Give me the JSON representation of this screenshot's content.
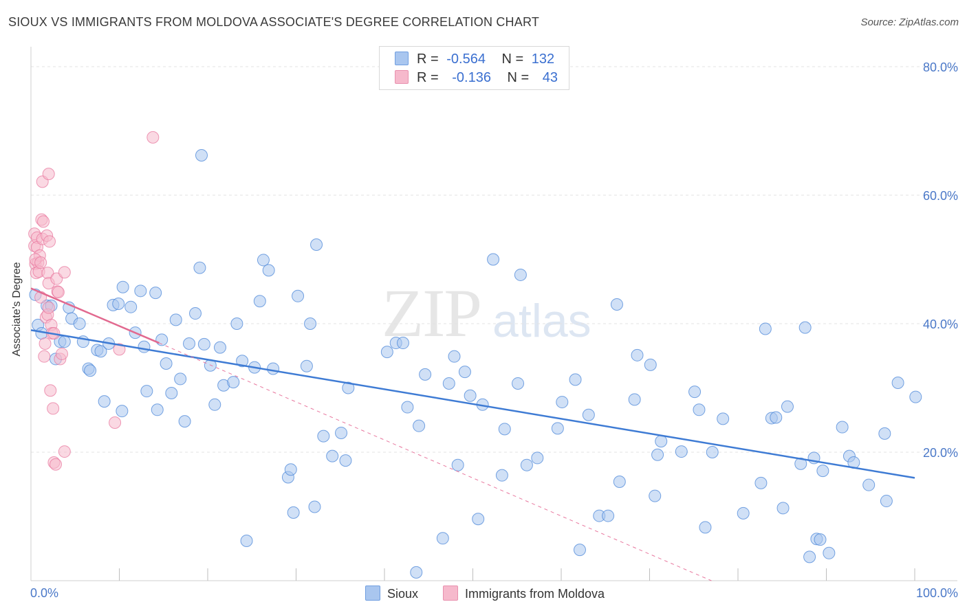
{
  "header": {
    "title": "SIOUX VS IMMIGRANTS FROM MOLDOVA ASSOCIATE'S DEGREE CORRELATION CHART",
    "source": "Source: ZipAtlas.com"
  },
  "watermark": {
    "zip": "ZIP",
    "atlas": "atlas"
  },
  "legend": {
    "rows": [
      {
        "r_label": "R =",
        "r_value": "-0.564",
        "n_label": "N =",
        "n_value": "132",
        "color": "#a9c6ef"
      },
      {
        "r_label": "R =",
        "r_value": "-0.136",
        "n_label": "N =",
        "n_value": "43",
        "color": "#f6b9cc"
      }
    ]
  },
  "bottom_legend": [
    {
      "label": "Sioux",
      "color": "#a9c6ef"
    },
    {
      "label": "Immigrants from Moldova",
      "color": "#f6b9cc"
    }
  ],
  "chart_data": {
    "type": "scatter",
    "title": "SIOUX VS IMMIGRANTS FROM MOLDOVA ASSOCIATE'S DEGREE CORRELATION CHART",
    "xlabel": "",
    "ylabel": "Associate's Degree",
    "xlim": [
      0,
      100
    ],
    "ylim": [
      0,
      80
    ],
    "x_tick_labels": [
      "0.0%",
      "100.0%"
    ],
    "y_ticks": [
      20,
      40,
      60,
      80
    ],
    "y_tick_labels": [
      "20.0%",
      "40.0%",
      "60.0%",
      "80.0%"
    ],
    "grid": true,
    "legend_position": "top-center",
    "series": [
      {
        "name": "Sioux",
        "color": "#4a86d8",
        "fill": "#a9c6ef",
        "trend": {
          "x": [
            0,
            100
          ],
          "y": [
            39.0,
            16.0
          ]
        },
        "points": [
          [
            0.5,
            44.5
          ],
          [
            0.8,
            39.8
          ],
          [
            1.2,
            38.5
          ],
          [
            1.8,
            42.8
          ],
          [
            2.3,
            42.8
          ],
          [
            2.8,
            34.5
          ],
          [
            3.3,
            37.2
          ],
          [
            3.8,
            37.2
          ],
          [
            4.3,
            42.5
          ],
          [
            4.6,
            40.8
          ],
          [
            5.5,
            40.0
          ],
          [
            5.9,
            37.2
          ],
          [
            6.5,
            33.0
          ],
          [
            6.7,
            32.7
          ],
          [
            7.5,
            35.9
          ],
          [
            7.9,
            35.7
          ],
          [
            8.3,
            27.9
          ],
          [
            8.8,
            36.9
          ],
          [
            9.3,
            42.9
          ],
          [
            9.9,
            43.1
          ],
          [
            10.3,
            26.4
          ],
          [
            10.4,
            45.7
          ],
          [
            11.3,
            42.6
          ],
          [
            11.8,
            38.6
          ],
          [
            12.4,
            45.1
          ],
          [
            12.8,
            36.4
          ],
          [
            13.1,
            29.5
          ],
          [
            14.1,
            44.8
          ],
          [
            14.3,
            26.6
          ],
          [
            14.8,
            37.5
          ],
          [
            15.3,
            33.8
          ],
          [
            15.9,
            29.2
          ],
          [
            16.4,
            40.6
          ],
          [
            16.9,
            31.4
          ],
          [
            17.4,
            24.8
          ],
          [
            17.9,
            36.9
          ],
          [
            18.6,
            41.6
          ],
          [
            19.1,
            48.7
          ],
          [
            19.3,
            66.2
          ],
          [
            19.6,
            36.8
          ],
          [
            20.3,
            33.5
          ],
          [
            20.8,
            27.4
          ],
          [
            21.4,
            36.3
          ],
          [
            21.8,
            30.4
          ],
          [
            22.9,
            30.9
          ],
          [
            23.3,
            40.0
          ],
          [
            23.9,
            34.2
          ],
          [
            24.4,
            6.2
          ],
          [
            25.3,
            33.2
          ],
          [
            25.9,
            43.5
          ],
          [
            26.3,
            49.9
          ],
          [
            26.9,
            48.3
          ],
          [
            27.4,
            33.0
          ],
          [
            29.1,
            16.1
          ],
          [
            29.4,
            17.3
          ],
          [
            29.7,
            10.6
          ],
          [
            30.2,
            44.3
          ],
          [
            31.2,
            33.4
          ],
          [
            31.6,
            40.0
          ],
          [
            32.1,
            11.5
          ],
          [
            32.3,
            52.3
          ],
          [
            33.1,
            22.5
          ],
          [
            34.1,
            19.4
          ],
          [
            35.1,
            23.0
          ],
          [
            35.6,
            18.7
          ],
          [
            35.9,
            30.0
          ],
          [
            40.3,
            35.6
          ],
          [
            41.3,
            37.0
          ],
          [
            42.1,
            37.0
          ],
          [
            42.6,
            27.0
          ],
          [
            43.6,
            1.3
          ],
          [
            43.9,
            24.1
          ],
          [
            44.6,
            32.1
          ],
          [
            46.6,
            6.6
          ],
          [
            47.3,
            30.7
          ],
          [
            47.9,
            34.9
          ],
          [
            48.3,
            18.0
          ],
          [
            49.1,
            32.5
          ],
          [
            49.7,
            28.8
          ],
          [
            50.6,
            9.6
          ],
          [
            51.1,
            27.4
          ],
          [
            52.3,
            50.0
          ],
          [
            53.3,
            16.4
          ],
          [
            53.6,
            23.6
          ],
          [
            55.1,
            30.7
          ],
          [
            55.4,
            47.6
          ],
          [
            56.1,
            18.0
          ],
          [
            57.3,
            19.1
          ],
          [
            59.6,
            23.7
          ],
          [
            60.1,
            27.8
          ],
          [
            61.6,
            31.3
          ],
          [
            62.1,
            4.8
          ],
          [
            63.1,
            25.8
          ],
          [
            64.3,
            10.1
          ],
          [
            65.3,
            10.1
          ],
          [
            66.3,
            43.0
          ],
          [
            66.6,
            15.4
          ],
          [
            68.3,
            28.2
          ],
          [
            68.6,
            35.1
          ],
          [
            70.1,
            33.6
          ],
          [
            70.6,
            13.2
          ],
          [
            70.9,
            19.6
          ],
          [
            71.3,
            21.7
          ],
          [
            73.6,
            20.1
          ],
          [
            75.1,
            29.4
          ],
          [
            75.6,
            26.6
          ],
          [
            76.3,
            8.3
          ],
          [
            77.1,
            20.0
          ],
          [
            78.3,
            25.2
          ],
          [
            80.6,
            10.5
          ],
          [
            82.6,
            15.2
          ],
          [
            83.1,
            39.2
          ],
          [
            83.8,
            25.3
          ],
          [
            84.3,
            25.4
          ],
          [
            85.1,
            11.3
          ],
          [
            85.6,
            27.1
          ],
          [
            87.1,
            18.2
          ],
          [
            87.6,
            39.4
          ],
          [
            88.1,
            3.7
          ],
          [
            88.6,
            19.1
          ],
          [
            88.9,
            6.5
          ],
          [
            89.3,
            6.4
          ],
          [
            89.6,
            17.1
          ],
          [
            90.3,
            4.3
          ],
          [
            91.8,
            23.9
          ],
          [
            92.6,
            19.4
          ],
          [
            93.1,
            18.4
          ],
          [
            94.8,
            14.9
          ],
          [
            96.6,
            22.9
          ],
          [
            96.8,
            12.4
          ],
          [
            98.1,
            30.8
          ],
          [
            100.1,
            28.6
          ]
        ]
      },
      {
        "name": "Immigrants from Moldova",
        "color": "#e8779e",
        "fill": "#f6b9cc",
        "trend": {
          "x": [
            0,
            14.5
          ],
          "y": [
            45.5,
            37.0
          ]
        },
        "trend_ext": {
          "x": [
            14.5,
            77
          ],
          "y": [
            37.0,
            0
          ]
        },
        "points": [
          [
            0.4,
            54.0
          ],
          [
            0.4,
            52.1
          ],
          [
            0.5,
            49.3
          ],
          [
            0.6,
            47.9
          ],
          [
            0.7,
            53.4
          ],
          [
            0.7,
            51.9
          ],
          [
            0.8,
            49.5
          ],
          [
            0.9,
            48.1
          ],
          [
            1.0,
            50.6
          ],
          [
            1.1,
            44.1
          ],
          [
            1.2,
            56.2
          ],
          [
            1.3,
            53.2
          ],
          [
            1.3,
            62.1
          ],
          [
            1.4,
            55.9
          ],
          [
            1.5,
            34.9
          ],
          [
            1.6,
            36.9
          ],
          [
            1.7,
            41.0
          ],
          [
            1.8,
            53.7
          ],
          [
            1.9,
            47.9
          ],
          [
            1.9,
            41.4
          ],
          [
            2.0,
            46.3
          ],
          [
            2.0,
            63.3
          ],
          [
            2.1,
            52.8
          ],
          [
            2.2,
            29.6
          ],
          [
            2.3,
            39.8
          ],
          [
            2.4,
            38.5
          ],
          [
            2.5,
            26.8
          ],
          [
            2.6,
            38.5
          ],
          [
            2.6,
            18.4
          ],
          [
            2.8,
            18.1
          ],
          [
            2.9,
            47.0
          ],
          [
            3.0,
            45.0
          ],
          [
            3.1,
            44.9
          ],
          [
            3.3,
            34.5
          ],
          [
            3.5,
            35.3
          ],
          [
            3.8,
            48.0
          ],
          [
            3.8,
            20.1
          ],
          [
            9.5,
            24.6
          ],
          [
            10.0,
            36.0
          ],
          [
            13.8,
            69.0
          ],
          [
            0.5,
            50.0
          ],
          [
            1.1,
            49.5
          ],
          [
            2.0,
            42.5
          ]
        ]
      }
    ]
  }
}
